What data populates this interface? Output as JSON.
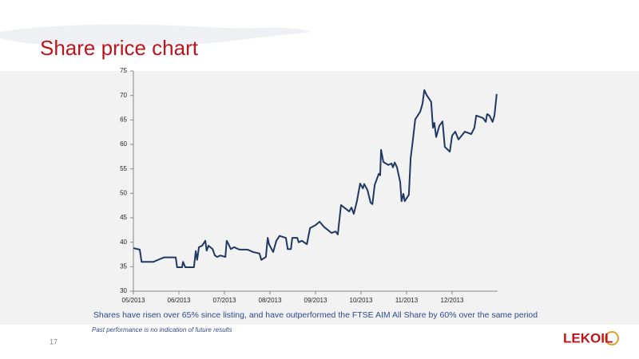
{
  "slide": {
    "title": "Share price chart",
    "caption": "Shares have risen over 65% since listing, and have outperformed the FTSE AIM All Share by 60% over the same period",
    "note": "Past performance is no indication of future results",
    "page_number": "17",
    "logo": "LEKOIL"
  },
  "chart_data": {
    "type": "line",
    "color": "#1f3864",
    "x": [
      0.0,
      0.14,
      0.18,
      0.44,
      0.54,
      0.67,
      0.93,
      0.96,
      1.07,
      1.09,
      1.14,
      1.33,
      1.37,
      1.4,
      1.44,
      1.51,
      1.58,
      1.61,
      1.65,
      1.74,
      1.79,
      1.84,
      1.91,
      2.02,
      2.05,
      2.09,
      2.14,
      2.21,
      2.33,
      2.51,
      2.63,
      2.77,
      2.81,
      2.91,
      2.95,
      2.98,
      3.07,
      3.14,
      3.21,
      3.35,
      3.39,
      3.46,
      3.49,
      3.6,
      3.63,
      3.7,
      3.81,
      3.88,
      4.0,
      4.09,
      4.18,
      4.26,
      4.35,
      4.44,
      4.49,
      4.56,
      4.67,
      4.74,
      4.79,
      4.84,
      4.91,
      4.98,
      5.04,
      5.07,
      5.14,
      5.21,
      5.25,
      5.3,
      5.39,
      5.42,
      5.44,
      5.49,
      5.6,
      5.67,
      5.7,
      5.74,
      5.79,
      5.86,
      5.89,
      5.93,
      5.96,
      6.05,
      6.09,
      6.14,
      6.19,
      6.3,
      6.35,
      6.39,
      6.44,
      6.54,
      6.58,
      6.61,
      6.65,
      6.72,
      6.79,
      6.84,
      6.95,
      7.0,
      7.07,
      7.14,
      7.21,
      7.28,
      7.42,
      7.49,
      7.53,
      7.68,
      7.74,
      7.77,
      7.82,
      7.89,
      7.93,
      7.98
    ],
    "values": [
      38.8,
      38.5,
      36.0,
      36.0,
      36.4,
      36.9,
      36.9,
      34.9,
      34.9,
      36.0,
      34.9,
      34.9,
      38.2,
      36.4,
      39.0,
      39.3,
      40.3,
      38.3,
      39.3,
      38.6,
      37.3,
      37.0,
      37.3,
      37.0,
      40.3,
      39.6,
      38.6,
      39.0,
      38.5,
      38.5,
      38.0,
      37.7,
      36.4,
      37.0,
      40.9,
      39.6,
      38.0,
      40.3,
      41.3,
      40.9,
      38.6,
      38.6,
      40.9,
      40.9,
      40.0,
      40.3,
      39.6,
      42.9,
      43.5,
      44.2,
      43.2,
      42.6,
      41.9,
      42.2,
      41.6,
      47.6,
      46.8,
      46.3,
      47.1,
      45.8,
      48.4,
      52.0,
      51.0,
      51.9,
      50.7,
      48.1,
      47.8,
      51.7,
      54.0,
      53.7,
      58.9,
      56.4,
      55.8,
      56.1,
      55.3,
      56.3,
      55.3,
      52.3,
      48.4,
      49.9,
      48.4,
      49.7,
      57.2,
      61.0,
      65.1,
      66.7,
      68.3,
      71.1,
      70.1,
      68.7,
      63.4,
      64.4,
      61.5,
      63.8,
      64.7,
      59.5,
      58.5,
      61.8,
      62.6,
      61.0,
      61.8,
      62.6,
      62.1,
      63.4,
      65.9,
      65.4,
      64.6,
      66.2,
      65.9,
      64.6,
      65.9,
      70.3
    ],
    "xlim": [
      0,
      8
    ],
    "xticks": [
      {
        "value": 0,
        "label": "05/2013"
      },
      {
        "value": 1,
        "label": "06/2013"
      },
      {
        "value": 2,
        "label": "07/2013"
      },
      {
        "value": 3,
        "label": "08/2013"
      },
      {
        "value": 4,
        "label": "09/2013"
      },
      {
        "value": 5,
        "label": "10/2013"
      },
      {
        "value": 6,
        "label": "11/2013"
      },
      {
        "value": 7,
        "label": "12/2013"
      }
    ],
    "ylim": [
      30,
      75
    ],
    "yticks": [
      30,
      35,
      40,
      45,
      50,
      55,
      60,
      65,
      70,
      75
    ],
    "grid": false
  }
}
